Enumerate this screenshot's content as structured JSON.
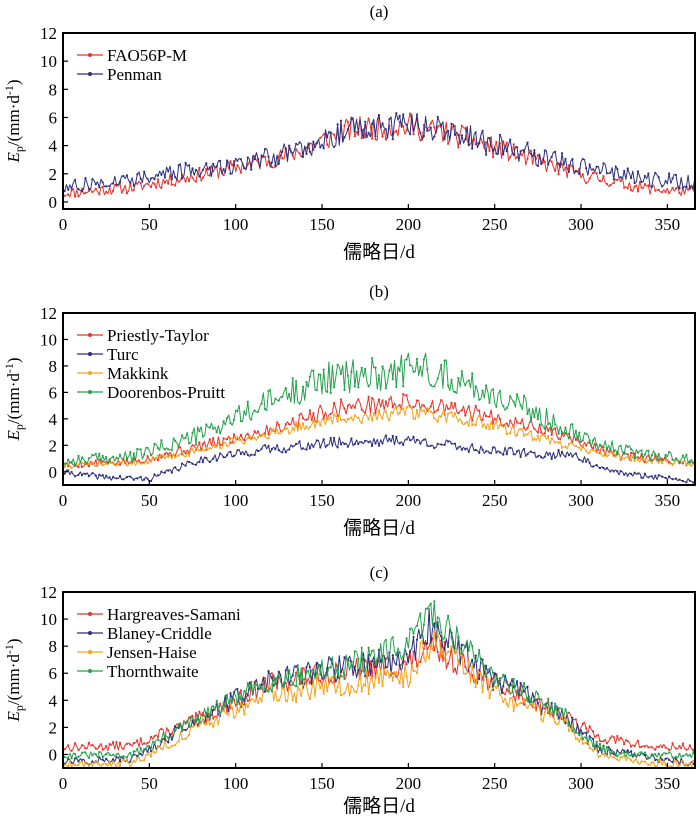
{
  "figure": {
    "xlabel": "儒略日/d",
    "ylabel": "Ep/(mm·d-1)"
  },
  "chart_data": [
    {
      "panel": "(a)",
      "type": "line",
      "xlabel": "儒略日/d",
      "ylabel": "Ep/(mm·d-1)",
      "xlim": [
        0,
        366
      ],
      "ylim": [
        -0.5,
        12
      ],
      "xticks": [
        0,
        50,
        100,
        150,
        200,
        250,
        300,
        350
      ],
      "yticks": [
        0,
        2,
        4,
        6,
        8,
        10,
        12
      ],
      "legend_position": "top-left",
      "grid": false,
      "series": [
        {
          "name": "FAO56P-M",
          "color": "#e8322a",
          "knots": [
            [
              1,
              0.7
            ],
            [
              40,
              1.1
            ],
            [
              90,
              2.3
            ],
            [
              130,
              3.4
            ],
            [
              165,
              5.3
            ],
            [
              200,
              5.6
            ],
            [
              225,
              5.0
            ],
            [
              260,
              3.6
            ],
            [
              300,
              2.0
            ],
            [
              340,
              1.0
            ],
            [
              366,
              0.8
            ]
          ],
          "noise": 0.8,
          "seed": 11
        },
        {
          "name": "Penman",
          "color": "#2c2f7c",
          "knots": [
            [
              1,
              1.1
            ],
            [
              40,
              1.8
            ],
            [
              90,
              2.6
            ],
            [
              130,
              3.6
            ],
            [
              165,
              5.4
            ],
            [
              200,
              5.7
            ],
            [
              225,
              5.1
            ],
            [
              260,
              3.9
            ],
            [
              300,
              2.6
            ],
            [
              340,
              1.7
            ],
            [
              366,
              1.5
            ]
          ],
          "noise": 0.9,
          "seed": 27
        }
      ]
    },
    {
      "panel": "(b)",
      "type": "line",
      "xlabel": "儒略日/d",
      "ylabel": "Ep/(mm·d-1)",
      "xlim": [
        0,
        366
      ],
      "ylim": [
        -1,
        12
      ],
      "xticks": [
        0,
        50,
        100,
        150,
        200,
        250,
        300,
        350
      ],
      "yticks": [
        0,
        2,
        4,
        6,
        8,
        10,
        12
      ],
      "legend_position": "top-left",
      "grid": false,
      "series": [
        {
          "name": "Priestly-Taylor",
          "color": "#e8322a",
          "knots": [
            [
              1,
              0.6
            ],
            [
              40,
              0.8
            ],
            [
              80,
              2.0
            ],
            [
              120,
              3.3
            ],
            [
              160,
              5.0
            ],
            [
              200,
              5.4
            ],
            [
              240,
              4.5
            ],
            [
              270,
              3.6
            ],
            [
              295,
              2.6
            ],
            [
              320,
              1.3
            ],
            [
              366,
              0.7
            ]
          ],
          "noise": 0.6,
          "seed": 5
        },
        {
          "name": "Turc",
          "color": "#2c2f7c",
          "knots": [
            [
              1,
              0.0
            ],
            [
              25,
              -0.4
            ],
            [
              50,
              -0.5
            ],
            [
              80,
              1.0
            ],
            [
              120,
              1.8
            ],
            [
              160,
              2.3
            ],
            [
              200,
              2.5
            ],
            [
              240,
              1.8
            ],
            [
              280,
              1.3
            ],
            [
              295,
              1.5
            ],
            [
              310,
              0.3
            ],
            [
              330,
              -0.2
            ],
            [
              366,
              -0.6
            ]
          ],
          "noise": 0.6,
          "seed": 41
        },
        {
          "name": "Makkink",
          "color": "#f5a21b",
          "knots": [
            [
              1,
              0.5
            ],
            [
              40,
              0.7
            ],
            [
              80,
              1.7
            ],
            [
              120,
              3.0
            ],
            [
              160,
              4.1
            ],
            [
              200,
              4.6
            ],
            [
              240,
              3.9
            ],
            [
              280,
              2.5
            ],
            [
              300,
              1.8
            ],
            [
              330,
              1.0
            ],
            [
              366,
              0.6
            ]
          ],
          "noise": 0.5,
          "seed": 73
        },
        {
          "name": "Doorenbos-Pruitt",
          "color": "#23a24b",
          "knots": [
            [
              1,
              0.9
            ],
            [
              40,
              1.2
            ],
            [
              80,
              3.0
            ],
            [
              120,
              5.5
            ],
            [
              150,
              7.3
            ],
            [
              180,
              7.6
            ],
            [
              210,
              8.2
            ],
            [
              250,
              6.0
            ],
            [
              290,
              3.6
            ],
            [
              320,
              1.8
            ],
            [
              366,
              0.9
            ]
          ],
          "noise": 0.9,
          "seed": 99
        }
      ]
    },
    {
      "panel": "(c)",
      "type": "line",
      "xlabel": "儒略日/d",
      "ylabel": "Ep/(mm·d-1)",
      "xlim": [
        0,
        366
      ],
      "ylim": [
        -1,
        12
      ],
      "xticks": [
        0,
        50,
        100,
        150,
        200,
        250,
        300,
        350
      ],
      "yticks": [
        0,
        2,
        4,
        6,
        8,
        10,
        12
      ],
      "legend_position": "top-left",
      "grid": false,
      "series": [
        {
          "name": "Hargreaves-Samani",
          "color": "#e8322a",
          "knots": [
            [
              1,
              0.6
            ],
            [
              40,
              0.7
            ],
            [
              80,
              2.8
            ],
            [
              120,
              5.4
            ],
            [
              160,
              6.3
            ],
            [
              200,
              6.9
            ],
            [
              215,
              8.0
            ],
            [
              250,
              5.4
            ],
            [
              290,
              3.0
            ],
            [
              310,
              1.4
            ],
            [
              340,
              0.6
            ],
            [
              366,
              0.6
            ]
          ],
          "noise": 0.7,
          "seed": 13
        },
        {
          "name": "Blaney-Criddle",
          "color": "#2c2f7c",
          "knots": [
            [
              1,
              -0.5
            ],
            [
              40,
              -0.3
            ],
            [
              80,
              2.9
            ],
            [
              120,
              5.6
            ],
            [
              160,
              6.6
            ],
            [
              200,
              7.2
            ],
            [
              212,
              9.8
            ],
            [
              250,
              5.8
            ],
            [
              290,
              2.9
            ],
            [
              310,
              0.5
            ],
            [
              340,
              -0.2
            ],
            [
              366,
              -0.6
            ]
          ],
          "noise": 0.8,
          "seed": 57
        },
        {
          "name": "Jensen-Haise",
          "color": "#f5a21b",
          "knots": [
            [
              1,
              -0.6
            ],
            [
              40,
              -0.6
            ],
            [
              80,
              2.2
            ],
            [
              120,
              4.6
            ],
            [
              160,
              5.2
            ],
            [
              200,
              6.0
            ],
            [
              212,
              8.4
            ],
            [
              250,
              4.8
            ],
            [
              290,
              2.3
            ],
            [
              310,
              0.1
            ],
            [
              340,
              -0.6
            ],
            [
              366,
              -0.7
            ]
          ],
          "noise": 0.8,
          "seed": 88
        },
        {
          "name": "Thornthwaite",
          "color": "#23a24b",
          "knots": [
            [
              1,
              0.0
            ],
            [
              40,
              0.0
            ],
            [
              80,
              2.9
            ],
            [
              120,
              5.6
            ],
            [
              160,
              6.6
            ],
            [
              200,
              8.2
            ],
            [
              212,
              10.9
            ],
            [
              250,
              6.0
            ],
            [
              290,
              3.1
            ],
            [
              300,
              1.4
            ],
            [
              320,
              0.0
            ],
            [
              366,
              0.0
            ]
          ],
          "noise": 0.7,
          "seed": 31
        }
      ]
    }
  ]
}
